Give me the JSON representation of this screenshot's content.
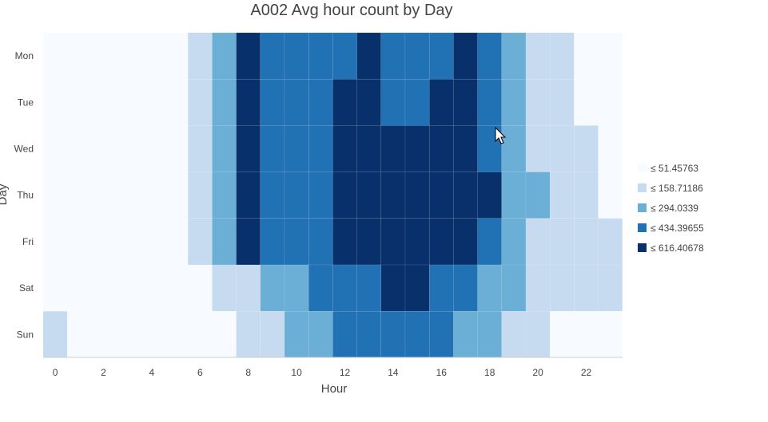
{
  "chart_data": {
    "type": "heatmap",
    "title": "A002 Avg hour count by Day",
    "xlabel": "Hour",
    "ylabel": "Day",
    "x": [
      0,
      1,
      2,
      3,
      4,
      5,
      6,
      7,
      8,
      9,
      10,
      11,
      12,
      13,
      14,
      15,
      16,
      17,
      18,
      19,
      20,
      21,
      22,
      23
    ],
    "x_tick_labels": [
      "0",
      "2",
      "4",
      "6",
      "8",
      "10",
      "12",
      "14",
      "16",
      "18",
      "20",
      "22"
    ],
    "y": [
      "Mon",
      "Tue",
      "Wed",
      "Thu",
      "Fri",
      "Sat",
      "Sun"
    ],
    "bins": [
      {
        "label": "≤ 51.45763",
        "color": "#f7fbff"
      },
      {
        "label": "≤ 158.71186",
        "color": "#c6dbef"
      },
      {
        "label": "≤ 294.0339",
        "color": "#6baed6"
      },
      {
        "label": "≤ 434.39655",
        "color": "#2171b5"
      },
      {
        "label": "≤ 616.40678",
        "color": "#08306b"
      }
    ],
    "z_bins": [
      [
        0,
        0,
        0,
        0,
        0,
        0,
        1,
        2,
        4,
        3,
        3,
        3,
        3,
        4,
        3,
        3,
        3,
        4,
        3,
        2,
        1,
        1,
        0,
        0
      ],
      [
        0,
        0,
        0,
        0,
        0,
        0,
        1,
        2,
        4,
        3,
        3,
        3,
        4,
        4,
        3,
        3,
        4,
        4,
        3,
        2,
        1,
        1,
        0,
        0
      ],
      [
        0,
        0,
        0,
        0,
        0,
        0,
        1,
        2,
        4,
        3,
        3,
        3,
        4,
        4,
        4,
        4,
        4,
        4,
        3,
        2,
        1,
        1,
        1,
        0
      ],
      [
        0,
        0,
        0,
        0,
        0,
        0,
        1,
        2,
        4,
        3,
        3,
        3,
        4,
        4,
        4,
        4,
        4,
        4,
        4,
        2,
        2,
        1,
        1,
        0
      ],
      [
        0,
        0,
        0,
        0,
        0,
        0,
        1,
        2,
        4,
        3,
        3,
        3,
        4,
        4,
        4,
        4,
        4,
        4,
        3,
        2,
        1,
        1,
        1,
        1
      ],
      [
        0,
        0,
        0,
        0,
        0,
        0,
        0,
        1,
        1,
        2,
        2,
        3,
        3,
        3,
        4,
        4,
        3,
        3,
        2,
        2,
        1,
        1,
        1,
        1
      ],
      [
        1,
        0,
        0,
        0,
        0,
        0,
        0,
        0,
        1,
        1,
        2,
        2,
        3,
        3,
        3,
        3,
        3,
        2,
        2,
        1,
        1,
        0,
        0,
        0
      ]
    ],
    "legend_position": "right",
    "grid": false
  }
}
